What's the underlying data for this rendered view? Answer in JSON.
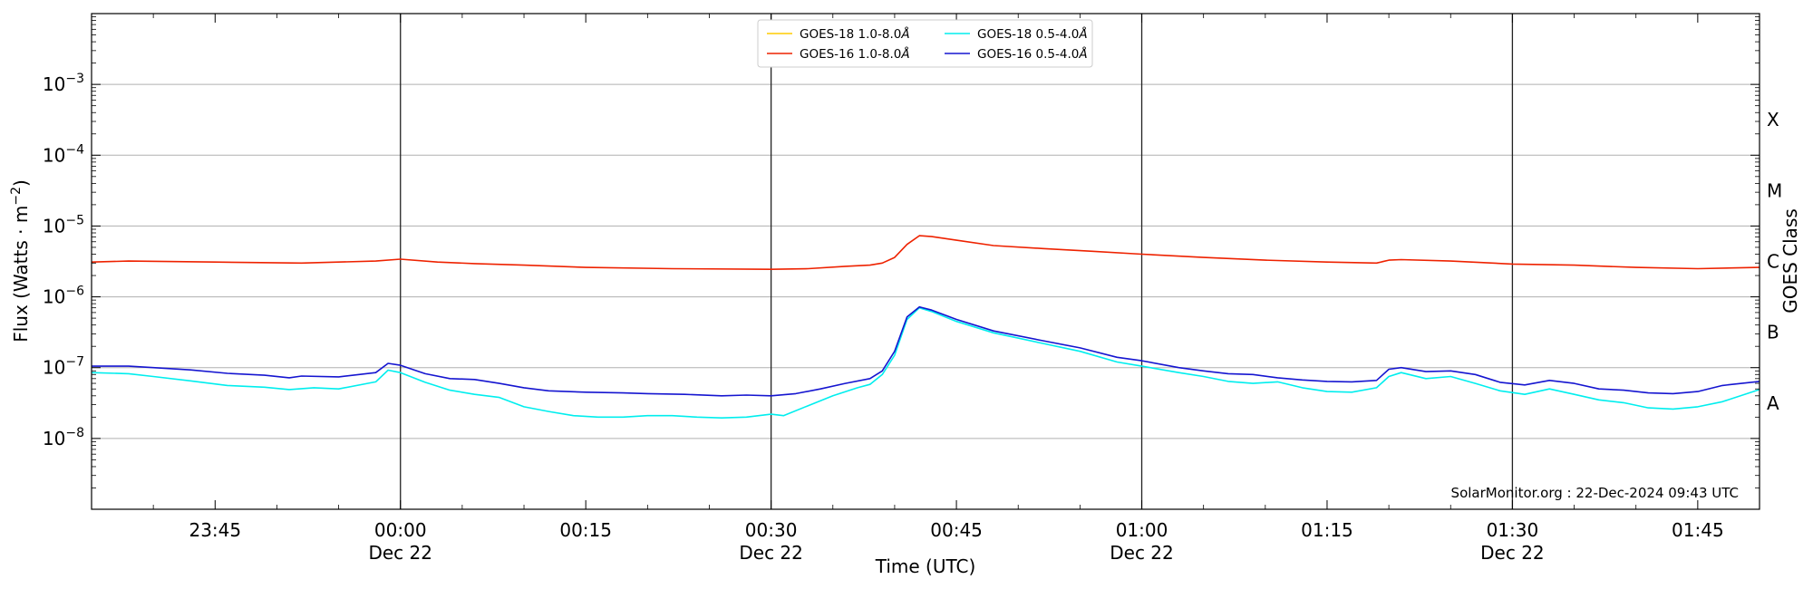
{
  "chart_data": {
    "type": "line",
    "xlabel": "Time (UTC)",
    "ylabel_base": "Flux (Watts · m",
    "ylabel_exp": "−2",
    "ylabel_close": ")",
    "right_label": "GOES Class",
    "credit": "SolarMonitor.org : 22-Dec-2024 09:43 UTC",
    "y_scale": "log",
    "xlim": [
      "2024-12-21 23:35",
      "2024-12-22 01:50"
    ],
    "ylim": [
      1e-09,
      0.01
    ],
    "y_ticks": [
      {
        "value": 1e-08,
        "base": "10",
        "exp": "−8"
      },
      {
        "value": 1e-07,
        "base": "10",
        "exp": "−7"
      },
      {
        "value": 1e-06,
        "base": "10",
        "exp": "−6"
      },
      {
        "value": 1e-05,
        "base": "10",
        "exp": "−5"
      },
      {
        "value": 0.0001,
        "base": "10",
        "exp": "−4"
      },
      {
        "value": 0.001,
        "base": "10",
        "exp": "−3"
      }
    ],
    "x_ticks": [
      {
        "time": "2024-12-21 23:45",
        "label": "23:45",
        "sublabel": ""
      },
      {
        "time": "2024-12-22 00:00",
        "label": "00:00",
        "sublabel": "Dec 22"
      },
      {
        "time": "2024-12-22 00:15",
        "label": "00:15",
        "sublabel": ""
      },
      {
        "time": "2024-12-22 00:30",
        "label": "00:30",
        "sublabel": "Dec 22"
      },
      {
        "time": "2024-12-22 00:45",
        "label": "00:45",
        "sublabel": ""
      },
      {
        "time": "2024-12-22 01:00",
        "label": "01:00",
        "sublabel": "Dec 22"
      },
      {
        "time": "2024-12-22 01:15",
        "label": "01:15",
        "sublabel": ""
      },
      {
        "time": "2024-12-22 01:30",
        "label": "01:30",
        "sublabel": "Dec 22"
      },
      {
        "time": "2024-12-22 01:45",
        "label": "01:45",
        "sublabel": ""
      }
    ],
    "vertical_lines": [
      "2024-12-22 00:00",
      "2024-12-22 00:30",
      "2024-12-22 01:00",
      "2024-12-22 01:30"
    ],
    "goes_classes": [
      {
        "label": "A",
        "value": 3.16e-08
      },
      {
        "label": "B",
        "value": 3.16e-07
      },
      {
        "label": "C",
        "value": 3.16e-06
      },
      {
        "label": "M",
        "value": 3.16e-05
      },
      {
        "label": "X",
        "value": 0.000316
      }
    ],
    "grid_y": true,
    "legend": {
      "placement": "top-center",
      "columns": 2
    },
    "series": [
      {
        "name": "GOES-18 1.0-8.0",
        "unit_symbol": "Å",
        "color": "#ffcc00",
        "points": []
      },
      {
        "name": "GOES-16 1.0-8.0",
        "unit_symbol": "Å",
        "color": "#ee2200",
        "points": [
          [
            "2024-12-21 23:35",
            3.1e-06
          ],
          [
            "2024-12-21 23:38",
            3.2e-06
          ],
          [
            "2024-12-21 23:45",
            3.1e-06
          ],
          [
            "2024-12-21 23:52",
            3e-06
          ],
          [
            "2024-12-21 23:58",
            3.2e-06
          ],
          [
            "2024-12-22 00:00",
            3.4e-06
          ],
          [
            "2024-12-22 00:03",
            3.1e-06
          ],
          [
            "2024-12-22 00:06",
            2.95e-06
          ],
          [
            "2024-12-22 00:10",
            2.8e-06
          ],
          [
            "2024-12-22 00:15",
            2.6e-06
          ],
          [
            "2024-12-22 00:22",
            2.5e-06
          ],
          [
            "2024-12-22 00:30",
            2.45e-06
          ],
          [
            "2024-12-22 00:33",
            2.5e-06
          ],
          [
            "2024-12-22 00:36",
            2.7e-06
          ],
          [
            "2024-12-22 00:38",
            2.8e-06
          ],
          [
            "2024-12-22 00:39",
            3e-06
          ],
          [
            "2024-12-22 00:40",
            3.6e-06
          ],
          [
            "2024-12-22 00:41",
            5.5e-06
          ],
          [
            "2024-12-22 00:42",
            7.3e-06
          ],
          [
            "2024-12-22 00:43",
            7.1e-06
          ],
          [
            "2024-12-22 00:45",
            6.3e-06
          ],
          [
            "2024-12-22 00:48",
            5.3e-06
          ],
          [
            "2024-12-22 00:52",
            4.8e-06
          ],
          [
            "2024-12-22 00:56",
            4.4e-06
          ],
          [
            "2024-12-22 01:00",
            4e-06
          ],
          [
            "2024-12-22 01:05",
            3.6e-06
          ],
          [
            "2024-12-22 01:10",
            3.3e-06
          ],
          [
            "2024-12-22 01:15",
            3.1e-06
          ],
          [
            "2024-12-22 01:19",
            3e-06
          ],
          [
            "2024-12-22 01:20",
            3.3e-06
          ],
          [
            "2024-12-22 01:21",
            3.35e-06
          ],
          [
            "2024-12-22 01:25",
            3.2e-06
          ],
          [
            "2024-12-22 01:30",
            2.9e-06
          ],
          [
            "2024-12-22 01:35",
            2.8e-06
          ],
          [
            "2024-12-22 01:40",
            2.6e-06
          ],
          [
            "2024-12-22 01:45",
            2.5e-06
          ],
          [
            "2024-12-22 01:50",
            2.6e-06
          ]
        ]
      },
      {
        "name": "GOES-18 0.5-4.0",
        "unit_symbol": "Å",
        "color": "#00eeee",
        "points": [
          [
            "2024-12-21 23:35",
            8.5e-08
          ],
          [
            "2024-12-21 23:38",
            8.2e-08
          ],
          [
            "2024-12-21 23:40",
            7.5e-08
          ],
          [
            "2024-12-21 23:43",
            6.5e-08
          ],
          [
            "2024-12-21 23:46",
            5.6e-08
          ],
          [
            "2024-12-21 23:49",
            5.3e-08
          ],
          [
            "2024-12-21 23:51",
            4.9e-08
          ],
          [
            "2024-12-21 23:53",
            5.2e-08
          ],
          [
            "2024-12-21 23:55",
            5e-08
          ],
          [
            "2024-12-21 23:58",
            6.3e-08
          ],
          [
            "2024-12-21 23:59",
            9.2e-08
          ],
          [
            "2024-12-22 00:00",
            8.5e-08
          ],
          [
            "2024-12-22 00:02",
            6.2e-08
          ],
          [
            "2024-12-22 00:04",
            4.8e-08
          ],
          [
            "2024-12-22 00:06",
            4.2e-08
          ],
          [
            "2024-12-22 00:08",
            3.8e-08
          ],
          [
            "2024-12-22 00:10",
            2.8e-08
          ],
          [
            "2024-12-22 00:12",
            2.4e-08
          ],
          [
            "2024-12-22 00:14",
            2.1e-08
          ],
          [
            "2024-12-22 00:16",
            2e-08
          ],
          [
            "2024-12-22 00:18",
            2e-08
          ],
          [
            "2024-12-22 00:20",
            2.1e-08
          ],
          [
            "2024-12-22 00:22",
            2.1e-08
          ],
          [
            "2024-12-22 00:24",
            2e-08
          ],
          [
            "2024-12-22 00:26",
            1.95e-08
          ],
          [
            "2024-12-22 00:28",
            2e-08
          ],
          [
            "2024-12-22 00:30",
            2.2e-08
          ],
          [
            "2024-12-22 00:31",
            2.1e-08
          ],
          [
            "2024-12-22 00:33",
            2.9e-08
          ],
          [
            "2024-12-22 00:35",
            4e-08
          ],
          [
            "2024-12-22 00:37",
            5.2e-08
          ],
          [
            "2024-12-22 00:38",
            5.8e-08
          ],
          [
            "2024-12-22 00:39",
            8e-08
          ],
          [
            "2024-12-22 00:40",
            1.5e-07
          ],
          [
            "2024-12-22 00:41",
            4.8e-07
          ],
          [
            "2024-12-22 00:42",
            7e-07
          ],
          [
            "2024-12-22 00:43",
            6.2e-07
          ],
          [
            "2024-12-22 00:45",
            4.5e-07
          ],
          [
            "2024-12-22 00:48",
            3.1e-07
          ],
          [
            "2024-12-22 00:52",
            2.2e-07
          ],
          [
            "2024-12-22 00:55",
            1.7e-07
          ],
          [
            "2024-12-22 00:58",
            1.2e-07
          ],
          [
            "2024-12-22 01:00",
            1.05e-07
          ],
          [
            "2024-12-22 01:03",
            8.5e-08
          ],
          [
            "2024-12-22 01:05",
            7.5e-08
          ],
          [
            "2024-12-22 01:07",
            6.4e-08
          ],
          [
            "2024-12-22 01:09",
            6e-08
          ],
          [
            "2024-12-22 01:11",
            6.3e-08
          ],
          [
            "2024-12-22 01:13",
            5.2e-08
          ],
          [
            "2024-12-22 01:15",
            4.6e-08
          ],
          [
            "2024-12-22 01:17",
            4.5e-08
          ],
          [
            "2024-12-22 01:19",
            5.2e-08
          ],
          [
            "2024-12-22 01:20",
            7.5e-08
          ],
          [
            "2024-12-22 01:21",
            8.5e-08
          ],
          [
            "2024-12-22 01:23",
            7e-08
          ],
          [
            "2024-12-22 01:25",
            7.5e-08
          ],
          [
            "2024-12-22 01:27",
            6e-08
          ],
          [
            "2024-12-22 01:29",
            4.7e-08
          ],
          [
            "2024-12-22 01:31",
            4.2e-08
          ],
          [
            "2024-12-22 01:33",
            5e-08
          ],
          [
            "2024-12-22 01:35",
            4.2e-08
          ],
          [
            "2024-12-22 01:37",
            3.5e-08
          ],
          [
            "2024-12-22 01:39",
            3.2e-08
          ],
          [
            "2024-12-22 01:41",
            2.7e-08
          ],
          [
            "2024-12-22 01:43",
            2.6e-08
          ],
          [
            "2024-12-22 01:45",
            2.8e-08
          ],
          [
            "2024-12-22 01:47",
            3.3e-08
          ],
          [
            "2024-12-22 01:50",
            4.9e-08
          ]
        ]
      },
      {
        "name": "GOES-16 0.5-4.0",
        "unit_symbol": "Å",
        "color": "#1515d0",
        "points": [
          [
            "2024-12-21 23:35",
            1.05e-07
          ],
          [
            "2024-12-21 23:38",
            1.05e-07
          ],
          [
            "2024-12-21 23:40",
            1e-07
          ],
          [
            "2024-12-21 23:43",
            9.3e-08
          ],
          [
            "2024-12-21 23:46",
            8.3e-08
          ],
          [
            "2024-12-21 23:49",
            7.8e-08
          ],
          [
            "2024-12-21 23:51",
            7.2e-08
          ],
          [
            "2024-12-21 23:52",
            7.6e-08
          ],
          [
            "2024-12-21 23:55",
            7.4e-08
          ],
          [
            "2024-12-21 23:58",
            8.5e-08
          ],
          [
            "2024-12-21 23:59",
            1.15e-07
          ],
          [
            "2024-12-22 00:00",
            1.08e-07
          ],
          [
            "2024-12-22 00:02",
            8.2e-08
          ],
          [
            "2024-12-22 00:04",
            7e-08
          ],
          [
            "2024-12-22 00:06",
            6.8e-08
          ],
          [
            "2024-12-22 00:08",
            6e-08
          ],
          [
            "2024-12-22 00:10",
            5.2e-08
          ],
          [
            "2024-12-22 00:12",
            4.7e-08
          ],
          [
            "2024-12-22 00:15",
            4.5e-08
          ],
          [
            "2024-12-22 00:18",
            4.4e-08
          ],
          [
            "2024-12-22 00:20",
            4.3e-08
          ],
          [
            "2024-12-22 00:23",
            4.2e-08
          ],
          [
            "2024-12-22 00:26",
            4e-08
          ],
          [
            "2024-12-22 00:28",
            4.1e-08
          ],
          [
            "2024-12-22 00:30",
            4e-08
          ],
          [
            "2024-12-22 00:32",
            4.3e-08
          ],
          [
            "2024-12-22 00:34",
            5e-08
          ],
          [
            "2024-12-22 00:36",
            6e-08
          ],
          [
            "2024-12-22 00:38",
            7e-08
          ],
          [
            "2024-12-22 00:39",
            9e-08
          ],
          [
            "2024-12-22 00:40",
            1.7e-07
          ],
          [
            "2024-12-22 00:41",
            5.2e-07
          ],
          [
            "2024-12-22 00:42",
            7.2e-07
          ],
          [
            "2024-12-22 00:43",
            6.5e-07
          ],
          [
            "2024-12-22 00:45",
            4.8e-07
          ],
          [
            "2024-12-22 00:48",
            3.3e-07
          ],
          [
            "2024-12-22 00:52",
            2.4e-07
          ],
          [
            "2024-12-22 00:55",
            1.9e-07
          ],
          [
            "2024-12-22 00:58",
            1.4e-07
          ],
          [
            "2024-12-22 01:00",
            1.25e-07
          ],
          [
            "2024-12-22 01:03",
            1e-07
          ],
          [
            "2024-12-22 01:05",
            9e-08
          ],
          [
            "2024-12-22 01:07",
            8.2e-08
          ],
          [
            "2024-12-22 01:09",
            8e-08
          ],
          [
            "2024-12-22 01:11",
            7.2e-08
          ],
          [
            "2024-12-22 01:13",
            6.7e-08
          ],
          [
            "2024-12-22 01:15",
            6.4e-08
          ],
          [
            "2024-12-22 01:17",
            6.3e-08
          ],
          [
            "2024-12-22 01:19",
            6.6e-08
          ],
          [
            "2024-12-22 01:20",
            9.5e-08
          ],
          [
            "2024-12-22 01:21",
            1e-07
          ],
          [
            "2024-12-22 01:23",
            8.8e-08
          ],
          [
            "2024-12-22 01:25",
            9e-08
          ],
          [
            "2024-12-22 01:27",
            8e-08
          ],
          [
            "2024-12-22 01:29",
            6.2e-08
          ],
          [
            "2024-12-22 01:31",
            5.7e-08
          ],
          [
            "2024-12-22 01:33",
            6.6e-08
          ],
          [
            "2024-12-22 01:35",
            6e-08
          ],
          [
            "2024-12-22 01:37",
            5e-08
          ],
          [
            "2024-12-22 01:39",
            4.8e-08
          ],
          [
            "2024-12-22 01:41",
            4.4e-08
          ],
          [
            "2024-12-22 01:43",
            4.3e-08
          ],
          [
            "2024-12-22 01:45",
            4.6e-08
          ],
          [
            "2024-12-22 01:47",
            5.6e-08
          ],
          [
            "2024-12-22 01:50",
            6.4e-08
          ]
        ]
      }
    ]
  }
}
